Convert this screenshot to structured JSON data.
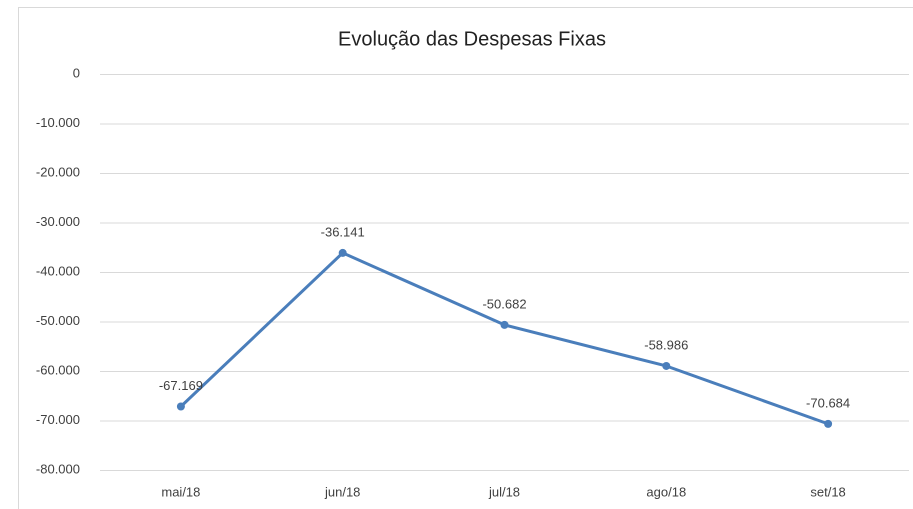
{
  "chart_data": {
    "type": "line",
    "title": "Evolução das Despesas Fixas",
    "categories": [
      "mai/18",
      "jun/18",
      "jul/18",
      "ago/18",
      "set/18"
    ],
    "values": [
      -67169,
      -36141,
      -50682,
      -58986,
      -70684
    ],
    "value_labels": [
      "-67.169",
      "-36.141",
      "-50.682",
      "-58.986",
      "-70.684"
    ],
    "color": "#4a7ebb",
    "ylim": [
      -80000,
      0
    ],
    "yticks": [
      0,
      {
        "value": -10000,
        "label": "-10.000"
      },
      {
        "value": -20000,
        "label": "-20.000"
      },
      {
        "value": -30000,
        "label": "-30.000"
      },
      {
        "value": -40000,
        "label": "-40.000"
      },
      {
        "value": -50000,
        "label": "-50.000"
      },
      {
        "value": -60000,
        "label": "-60.000"
      },
      {
        "value": -70000,
        "label": "-70.000"
      },
      {
        "value": -80000,
        "label": "-80.000"
      }
    ],
    "grid": true
  }
}
